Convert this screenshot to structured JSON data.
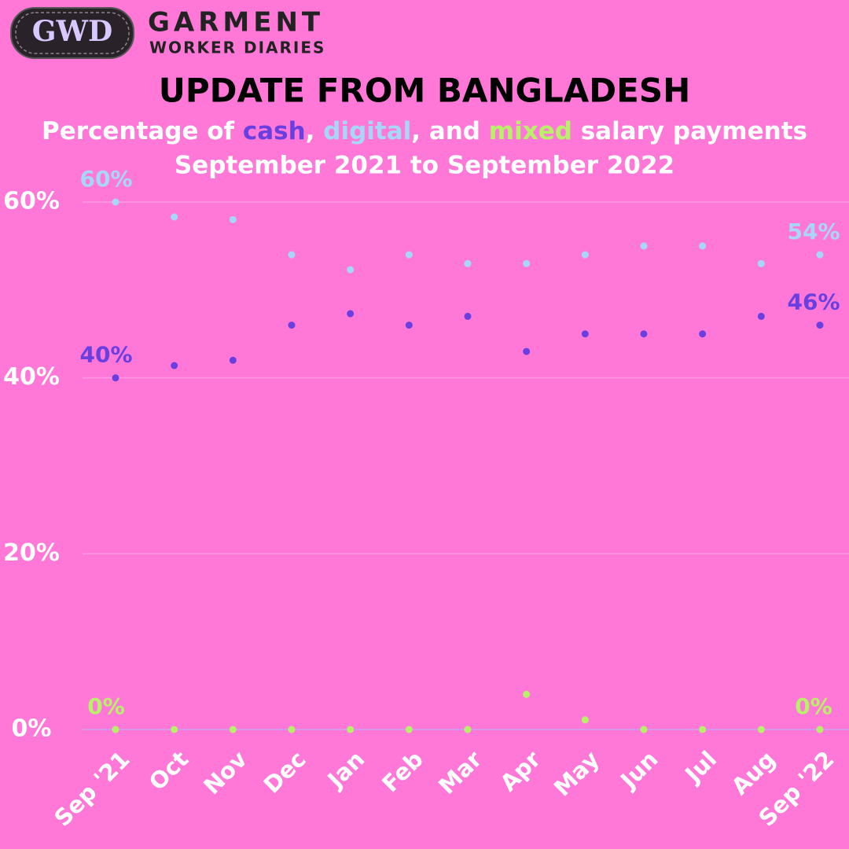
{
  "logo": {
    "mark": "GWD",
    "name": "GARMENT",
    "tagline": "WORKER DIARIES"
  },
  "chart_data": {
    "type": "line",
    "title": "UPDATE FROM BANGLADESH",
    "subtitle": [
      "Percentage of ",
      "cash",
      ", ",
      "digital",
      ", and ",
      "mixed",
      " salary payments"
    ],
    "subtitle2": "September 2021 to September 2022",
    "categories": [
      "Sep '21",
      "Oct",
      "Nov",
      "Dec",
      "Jan",
      "Feb",
      "Mar",
      "Apr",
      "May",
      "Jun",
      "Jul",
      "Aug",
      "Sep '22"
    ],
    "series": [
      {
        "name": "digital",
        "color": "#a8d6f7",
        "values": [
          60,
          58.3,
          58,
          54,
          52.3,
          54,
          53,
          53,
          54,
          55,
          55,
          53,
          54
        ],
        "value_labels": [
          "60%",
          null,
          null,
          null,
          null,
          null,
          null,
          null,
          null,
          null,
          null,
          null,
          "54%"
        ]
      },
      {
        "name": "cash",
        "color": "#6a3fe0",
        "values": [
          40,
          41.4,
          42,
          46,
          47.3,
          46,
          47,
          43,
          45,
          45,
          45,
          47,
          46
        ],
        "value_labels": [
          "40%",
          null,
          null,
          null,
          null,
          null,
          null,
          null,
          null,
          null,
          null,
          null,
          "46%"
        ]
      },
      {
        "name": "mixed",
        "color": "#b9f06a",
        "values": [
          0,
          0,
          0,
          0,
          0,
          0,
          0,
          4,
          1.1,
          0,
          0,
          0,
          0
        ],
        "value_labels": [
          "0%",
          null,
          null,
          null,
          null,
          null,
          null,
          null,
          null,
          null,
          null,
          null,
          "0%"
        ]
      }
    ],
    "ylim": [
      0,
      60
    ],
    "yticks": [
      {
        "value": 0,
        "label": "0%"
      },
      {
        "value": 20,
        "label": "20%"
      },
      {
        "value": 40,
        "label": "40%"
      },
      {
        "value": 60,
        "label": "60%"
      }
    ],
    "grid": true
  }
}
